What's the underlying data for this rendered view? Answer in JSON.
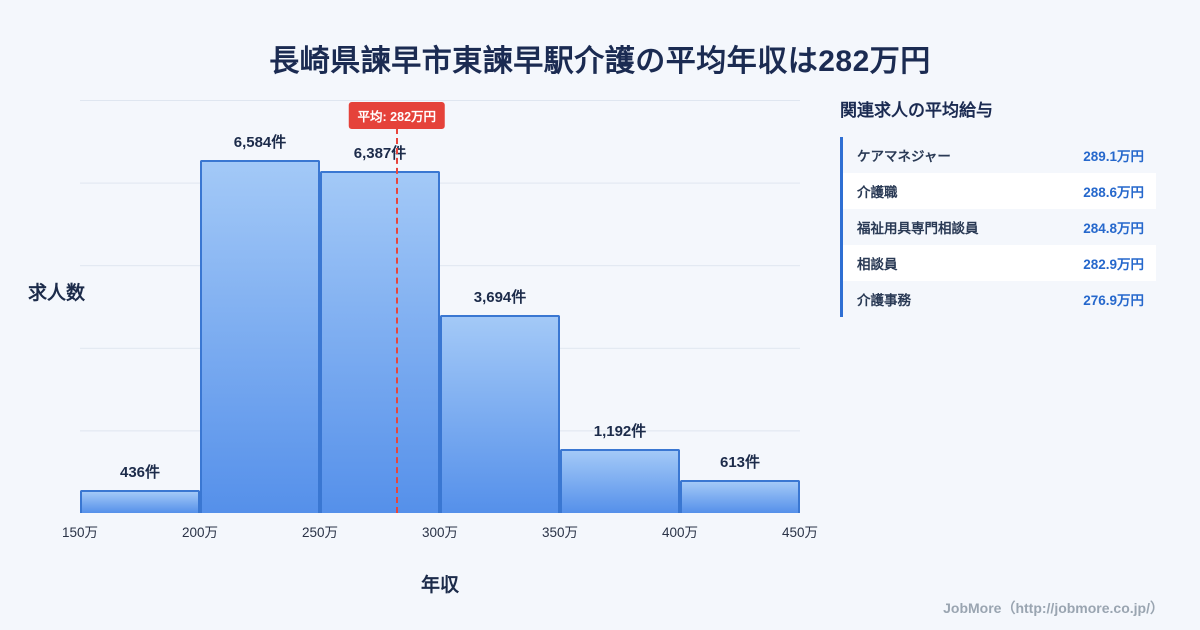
{
  "title": "長崎県諫早市東諫早駅介護の平均年収は282万円",
  "chart_data": {
    "type": "bar",
    "title": "長崎県諫早市東諫早駅介護の平均年収は282万円",
    "xlabel": "年収",
    "ylabel": "求人数",
    "x_ticks": [
      "150万",
      "200万",
      "250万",
      "300万",
      "350万",
      "400万",
      "450万"
    ],
    "categories": [
      "150万-200万",
      "200万-250万",
      "250万-300万",
      "300万-350万",
      "350万-400万",
      "400万-450万"
    ],
    "values": [
      436,
      6584,
      6387,
      3694,
      1192,
      613
    ],
    "bar_labels": [
      "436件",
      "6,584件",
      "6,387件",
      "3,694件",
      "1,192件",
      "613件"
    ],
    "x_range": [
      150,
      450
    ],
    "average": {
      "value": 282,
      "label": "平均: 282万円"
    },
    "grid": "horizontal"
  },
  "side_panel": {
    "heading": "関連求人の平均給与",
    "rows": [
      {
        "name": "ケアマネジャー",
        "value": "289.1万円"
      },
      {
        "name": "介護職",
        "value": "288.6万円"
      },
      {
        "name": "福祉用具専門相談員",
        "value": "284.8万円"
      },
      {
        "name": "相談員",
        "value": "282.9万円"
      },
      {
        "name": "介護事務",
        "value": "276.9万円"
      }
    ]
  },
  "footer": {
    "credit": "JobMore（http://jobmore.co.jp/）"
  },
  "colors": {
    "background": "#f4f7fc",
    "title_text": "#1b2b52",
    "bar_gradient_top": "#a3c9f7",
    "bar_gradient_bottom": "#5590ea",
    "bar_border": "#3a77d2",
    "average_red": "#e5423a",
    "value_blue": "#2668cc",
    "panel_accent": "#2f6fd3",
    "footer_gray": "#9aa5b1"
  }
}
